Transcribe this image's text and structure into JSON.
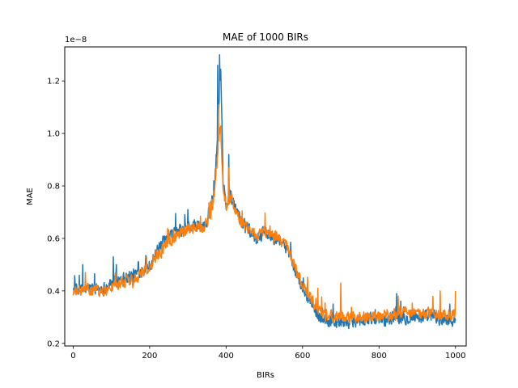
{
  "chart_data": {
    "type": "line",
    "title": "MAE of 1000 BIRs",
    "xlabel": "BIRs",
    "ylabel": "MAE",
    "y_offset_text": "1e−8",
    "y_scale": 1e-08,
    "xlim": [
      -22,
      1028
    ],
    "ylim": [
      0.19,
      1.33
    ],
    "x_ticks": [
      0,
      200,
      400,
      600,
      800,
      1000
    ],
    "x_tick_labels": [
      "0",
      "200",
      "400",
      "600",
      "800",
      "1000"
    ],
    "y_ticks": [
      0.2,
      0.4,
      0.6,
      0.8,
      1.0,
      1.2
    ],
    "y_tick_labels": [
      "0.2",
      "0.4",
      "0.6",
      "0.8",
      "1.0",
      "1.2"
    ],
    "grid": false,
    "legend": "none",
    "series": [
      {
        "name": "series-1",
        "color": "#1f77b4",
        "trend": [
          [
            0,
            0.41
          ],
          [
            20,
            0.4
          ],
          [
            40,
            0.41
          ],
          [
            60,
            0.41
          ],
          [
            80,
            0.41
          ],
          [
            100,
            0.43
          ],
          [
            120,
            0.45
          ],
          [
            140,
            0.45
          ],
          [
            160,
            0.46
          ],
          [
            180,
            0.48
          ],
          [
            200,
            0.5
          ],
          [
            220,
            0.55
          ],
          [
            240,
            0.59
          ],
          [
            260,
            0.62
          ],
          [
            280,
            0.63
          ],
          [
            300,
            0.64
          ],
          [
            320,
            0.65
          ],
          [
            340,
            0.64
          ],
          [
            360,
            0.71
          ],
          [
            370,
            0.8
          ],
          [
            380,
            1.05
          ],
          [
            386,
            1.24
          ],
          [
            392,
            0.82
          ],
          [
            400,
            0.72
          ],
          [
            410,
            0.78
          ],
          [
            420,
            0.73
          ],
          [
            440,
            0.67
          ],
          [
            460,
            0.64
          ],
          [
            480,
            0.6
          ],
          [
            500,
            0.62
          ],
          [
            520,
            0.61
          ],
          [
            540,
            0.6
          ],
          [
            560,
            0.56
          ],
          [
            580,
            0.48
          ],
          [
            600,
            0.41
          ],
          [
            620,
            0.36
          ],
          [
            640,
            0.31
          ],
          [
            660,
            0.29
          ],
          [
            680,
            0.28
          ],
          [
            700,
            0.28
          ],
          [
            720,
            0.28
          ],
          [
            740,
            0.29
          ],
          [
            760,
            0.29
          ],
          [
            780,
            0.29
          ],
          [
            800,
            0.29
          ],
          [
            820,
            0.29
          ],
          [
            840,
            0.3
          ],
          [
            860,
            0.3
          ],
          [
            880,
            0.3
          ],
          [
            900,
            0.3
          ],
          [
            920,
            0.3
          ],
          [
            940,
            0.3
          ],
          [
            960,
            0.29
          ],
          [
            980,
            0.29
          ],
          [
            1000,
            0.29
          ]
        ],
        "spikes": [
          [
            25,
            0.5
          ],
          [
            105,
            0.53
          ],
          [
            300,
            0.71
          ],
          [
            378,
            1.26
          ],
          [
            383,
            1.3
          ],
          [
            407,
            0.92
          ],
          [
            680,
            0.35
          ],
          [
            846,
            0.39
          ]
        ],
        "noise": 0.022
      },
      {
        "name": "series-2",
        "color": "#ff7f0e",
        "trend": [
          [
            0,
            0.39
          ],
          [
            20,
            0.4
          ],
          [
            40,
            0.4
          ],
          [
            60,
            0.4
          ],
          [
            80,
            0.4
          ],
          [
            100,
            0.41
          ],
          [
            120,
            0.43
          ],
          [
            140,
            0.44
          ],
          [
            160,
            0.45
          ],
          [
            180,
            0.47
          ],
          [
            200,
            0.49
          ],
          [
            220,
            0.53
          ],
          [
            240,
            0.57
          ],
          [
            260,
            0.6
          ],
          [
            280,
            0.62
          ],
          [
            300,
            0.63
          ],
          [
            320,
            0.64
          ],
          [
            340,
            0.63
          ],
          [
            360,
            0.69
          ],
          [
            370,
            0.78
          ],
          [
            380,
            0.96
          ],
          [
            386,
            1.02
          ],
          [
            392,
            0.8
          ],
          [
            400,
            0.72
          ],
          [
            410,
            0.76
          ],
          [
            420,
            0.72
          ],
          [
            440,
            0.66
          ],
          [
            460,
            0.64
          ],
          [
            480,
            0.61
          ],
          [
            500,
            0.63
          ],
          [
            520,
            0.61
          ],
          [
            540,
            0.6
          ],
          [
            560,
            0.56
          ],
          [
            580,
            0.49
          ],
          [
            600,
            0.42
          ],
          [
            620,
            0.37
          ],
          [
            640,
            0.33
          ],
          [
            660,
            0.31
          ],
          [
            680,
            0.3
          ],
          [
            700,
            0.3
          ],
          [
            720,
            0.3
          ],
          [
            740,
            0.3
          ],
          [
            760,
            0.3
          ],
          [
            780,
            0.3
          ],
          [
            800,
            0.3
          ],
          [
            820,
            0.31
          ],
          [
            840,
            0.31
          ],
          [
            860,
            0.32
          ],
          [
            880,
            0.31
          ],
          [
            900,
            0.31
          ],
          [
            920,
            0.31
          ],
          [
            940,
            0.32
          ],
          [
            960,
            0.31
          ],
          [
            980,
            0.31
          ],
          [
            1000,
            0.31
          ]
        ],
        "spikes": [
          [
            380,
            1.11
          ],
          [
            407,
            0.87
          ],
          [
            640,
            0.41
          ],
          [
            700,
            0.43
          ],
          [
            850,
            0.38
          ],
          [
            960,
            0.4
          ],
          [
            1000,
            0.4
          ]
        ],
        "noise": 0.02
      }
    ]
  }
}
